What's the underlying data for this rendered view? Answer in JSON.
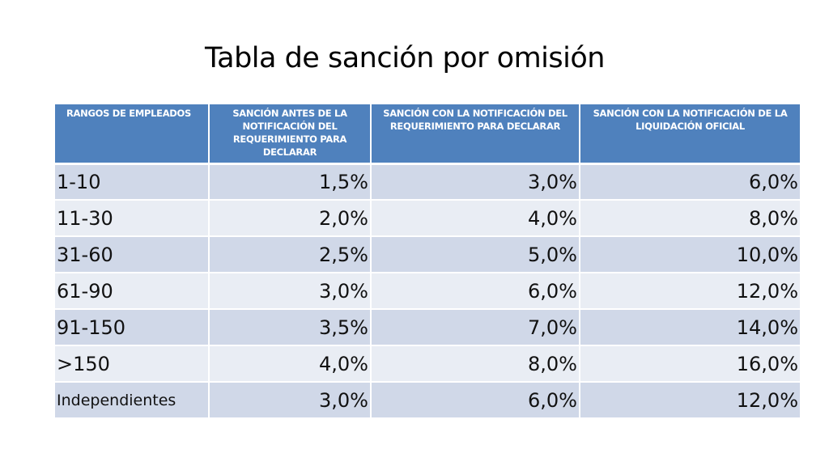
{
  "slide": {
    "title": "Tabla de sanción por omisión"
  },
  "table": {
    "headers": [
      "RANGOS DE EMPLEADOS",
      "SANCIÓN ANTES DE LA NOTIFICACIÓN DEL REQUERIMIENTO PARA DECLARAR",
      "SANCIÓN CON LA NOTIFICACIÓN DEL REQUERIMIENTO PARA DECLARAR",
      "SANCIÓN CON LA NOTIFICACIÓN DE LA LIQUIDACIÓN OFICIAL"
    ],
    "rows": [
      [
        "1-10",
        "1,5%",
        "3,0%",
        "6,0%"
      ],
      [
        "11-30",
        "2,0%",
        "4,0%",
        "8,0%"
      ],
      [
        "31-60",
        "2,5%",
        "5,0%",
        "10,0%"
      ],
      [
        "61-90",
        "3,0%",
        "6,0%",
        "12,0%"
      ],
      [
        "91-150",
        "3,5%",
        "7,0%",
        "14,0%"
      ],
      [
        ">150",
        "4,0%",
        "8,0%",
        "16,0%"
      ],
      [
        "Independientes",
        "3,0%",
        "6,0%",
        "12,0%"
      ]
    ]
  },
  "colors": {
    "header_bg": "#4f81bd",
    "row_odd_bg": "#d0d8e8",
    "row_even_bg": "#e9edf4"
  }
}
